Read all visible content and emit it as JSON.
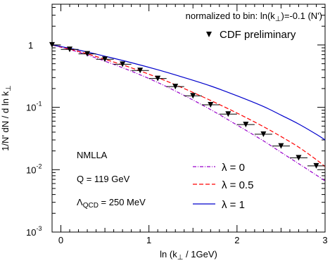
{
  "chart_data": {
    "type": "line",
    "title": "",
    "xlabel": {
      "pre": "ln (k",
      "sub": "⊥",
      "post": " / 1GeV)"
    },
    "ylabel": {
      "pre": "1/N' dN / d ln k",
      "sub": "⊥"
    },
    "xlim": [
      -0.1,
      3.0
    ],
    "ylim": [
      0.001,
      4.5
    ],
    "yscale": "log",
    "x_ticks": [
      {
        "value": 0,
        "label": "0"
      },
      {
        "value": 1,
        "label": "1"
      },
      {
        "value": 2,
        "label": "2"
      },
      {
        "value": 3,
        "label": "3"
      }
    ],
    "y_ticks": [
      {
        "value": 1,
        "base": "1",
        "exp": ""
      },
      {
        "value": 0.1,
        "base": "10",
        "exp": "-1"
      },
      {
        "value": 0.01,
        "base": "10",
        "exp": "-2"
      },
      {
        "value": 0.001,
        "base": "10",
        "exp": "-3"
      }
    ],
    "normalization_note": {
      "pre": "normalized to bin: ln(k",
      "sub": "⊥",
      "post": ")=-0.1 (N')"
    },
    "annotations": {
      "scheme": "NMLLA",
      "q": "Q = 119 GeV",
      "lambda_qcd": {
        "pre": "Λ",
        "sub": "QCD",
        "post": " = 250 MeV"
      }
    },
    "data_series": {
      "name": "CDF preliminary",
      "marker": "down-triangle",
      "color": "#000000",
      "bin_halfwidth": 0.1,
      "x": [
        -0.1,
        0.1,
        0.3,
        0.5,
        0.7,
        0.9,
        1.1,
        1.3,
        1.5,
        1.7,
        1.9,
        2.1,
        2.3,
        2.5,
        2.7,
        2.9
      ],
      "y": [
        1.0,
        0.85,
        0.72,
        0.59,
        0.49,
        0.39,
        0.29,
        0.215,
        0.153,
        0.11,
        0.078,
        0.053,
        0.037,
        0.024,
        0.0155,
        0.0115
      ]
    },
    "series": [
      {
        "name": "λ = 0",
        "style": "dash-dot",
        "color": "#9900cc",
        "x": [
          -0.1,
          0.2,
          0.5,
          0.8,
          1.1,
          1.4,
          1.7,
          2.0,
          2.3,
          2.5,
          2.7,
          2.9,
          3.0
        ],
        "y": [
          1.0,
          0.77,
          0.55,
          0.38,
          0.25,
          0.155,
          0.092,
          0.052,
          0.029,
          0.019,
          0.0125,
          0.0082,
          0.0066
        ]
      },
      {
        "name": "λ = 0.5",
        "style": "dashed",
        "color": "#ff0000",
        "x": [
          -0.1,
          0.2,
          0.5,
          0.8,
          1.1,
          1.4,
          1.7,
          2.0,
          2.3,
          2.5,
          2.7,
          2.9,
          3.0
        ],
        "y": [
          1.0,
          0.79,
          0.59,
          0.43,
          0.3,
          0.2,
          0.129,
          0.081,
          0.049,
          0.034,
          0.023,
          0.0145,
          0.0112
        ]
      },
      {
        "name": "λ = 1",
        "style": "solid",
        "color": "#0000cc",
        "x": [
          -0.1,
          0.2,
          0.5,
          0.8,
          1.1,
          1.4,
          1.7,
          2.0,
          2.3,
          2.5,
          2.7,
          2.9,
          3.0
        ],
        "y": [
          1.0,
          0.83,
          0.66,
          0.52,
          0.4,
          0.3,
          0.22,
          0.153,
          0.103,
          0.075,
          0.054,
          0.037,
          0.03
        ]
      }
    ],
    "grid": false,
    "legend": {
      "data_position": "top-right",
      "curves_position": "bottom-right"
    }
  }
}
